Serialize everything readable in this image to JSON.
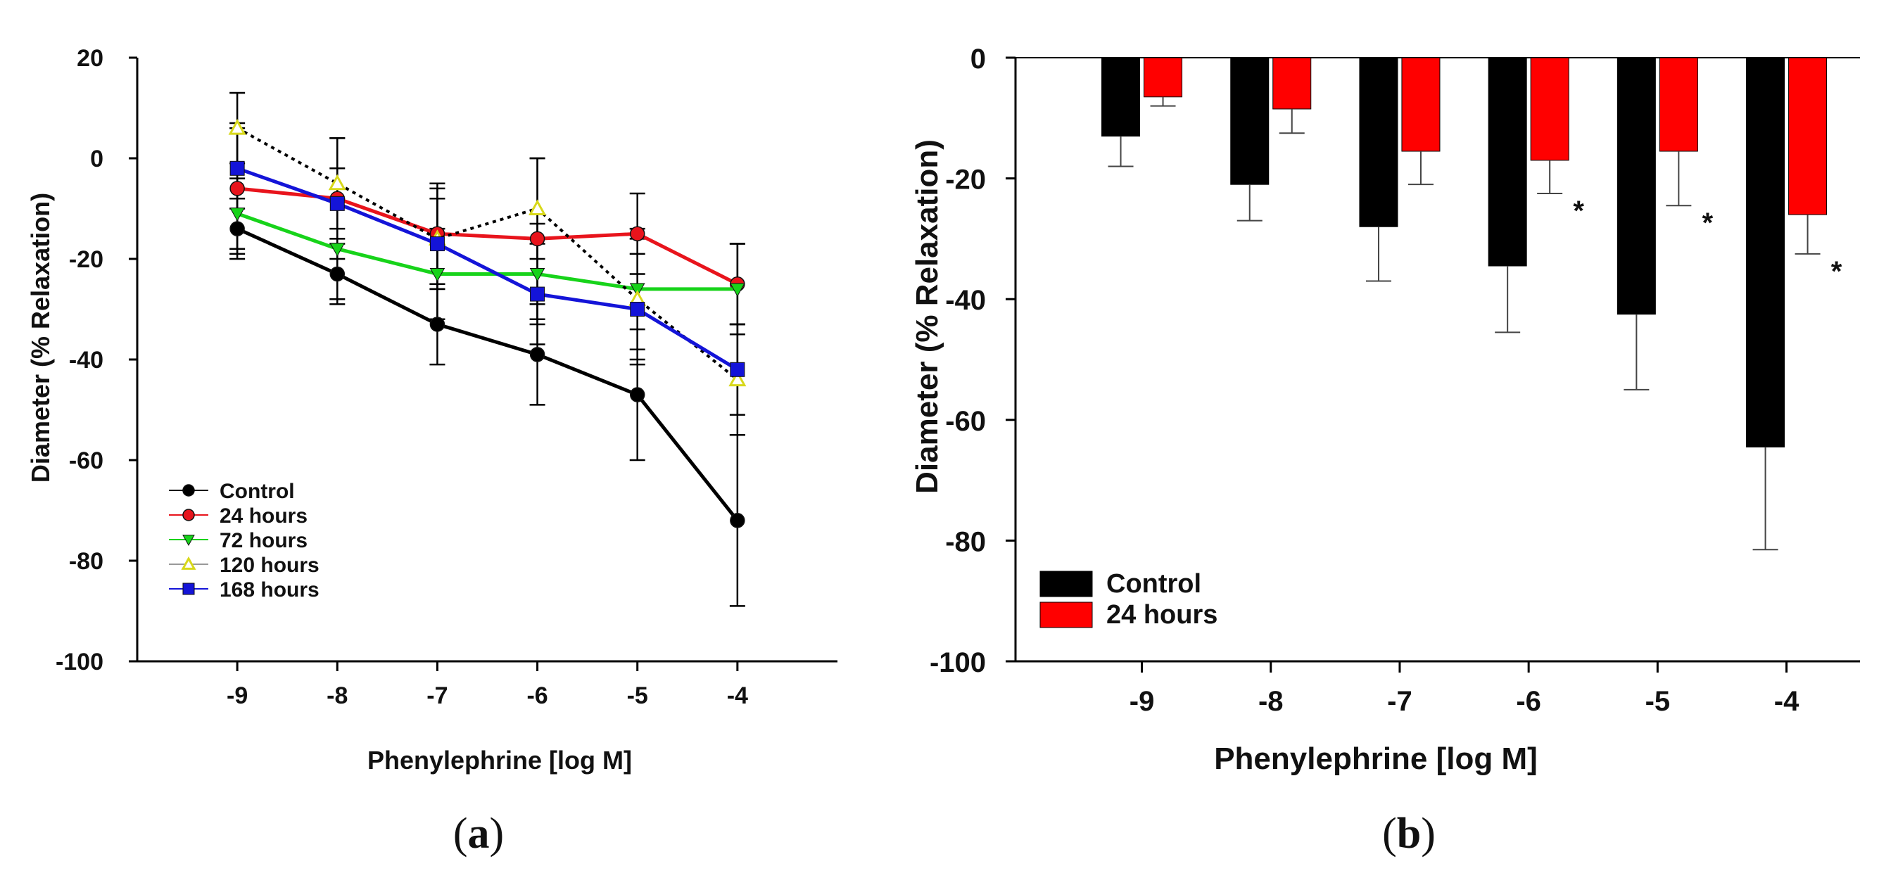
{
  "chart_data": [
    {
      "type": "line",
      "panel_label": "a",
      "xlabel": "Phenylephrine [log M]",
      "ylabel": "Diameter (% Relaxation)",
      "x": [
        -9,
        -8,
        -7,
        -6,
        -5,
        -4
      ],
      "x_tick_labels": [
        "-9",
        "-8",
        "-7",
        "-6",
        "-5",
        "-4"
      ],
      "xlim": [
        -10,
        -3
      ],
      "ylim": [
        -100,
        20
      ],
      "y_ticks": [
        20,
        0,
        -20,
        -40,
        -60,
        -80,
        -100
      ],
      "y_tick_labels": [
        "20",
        "0",
        "-20",
        "-40",
        "-60",
        "-80",
        "-100"
      ],
      "grid": false,
      "legend_position": "bottom-left",
      "series": [
        {
          "name": "Control",
          "color": "#000000",
          "marker": "circle",
          "line": "solid",
          "values": [
            -14,
            -23,
            -33,
            -39,
            -47,
            -72
          ],
          "error": [
            6,
            6,
            8,
            10,
            13,
            17
          ]
        },
        {
          "name": "24 hours",
          "color": "#e8141c",
          "marker": "circle",
          "line": "solid",
          "values": [
            -6,
            -8,
            -15,
            -16,
            -15,
            -25
          ],
          "error": [
            13,
            12,
            10,
            16,
            8,
            8
          ]
        },
        {
          "name": "72 hours",
          "color": "#17d31a",
          "marker": "triangle-down",
          "line": "solid",
          "values": [
            -11,
            -18,
            -23,
            -23,
            -26,
            -26
          ],
          "error": [
            7,
            10,
            9,
            10,
            12,
            9
          ]
        },
        {
          "name": "120 hours",
          "color": "#d8d81a",
          "marker": "triangle-up",
          "line": "dotted",
          "values": [
            6,
            -5,
            -16,
            -10,
            -28,
            -44
          ],
          "error": [
            7,
            9,
            10,
            10,
            12,
            11
          ]
        },
        {
          "name": "168 hours",
          "color": "#1414d8",
          "marker": "square",
          "line": "solid",
          "values": [
            -2,
            -9,
            -17,
            -27,
            -30,
            -42
          ],
          "error": [
            8,
            7,
            9,
            10,
            11,
            9
          ]
        }
      ]
    },
    {
      "type": "bar",
      "panel_label": "b",
      "xlabel": "Phenylephrine [log M]",
      "ylabel": "Diameter (% Relaxation)",
      "categories": [
        "-9",
        "-8",
        "-7",
        "-6",
        "-5",
        "-4"
      ],
      "ylim": [
        -100,
        0
      ],
      "y_ticks": [
        0,
        -20,
        -40,
        -60,
        -80,
        -100
      ],
      "y_tick_labels": [
        "0",
        "-20",
        "-40",
        "-60",
        "-80",
        "-100"
      ],
      "grid": false,
      "legend_position": "bottom-left",
      "series": [
        {
          "name": "Control",
          "color": "#000000",
          "values": [
            -13,
            -21,
            -28,
            -34.5,
            -42.5,
            -64.5
          ],
          "error": [
            5,
            6,
            9,
            11,
            12.5,
            17
          ]
        },
        {
          "name": "24 hours",
          "color": "#ff0000",
          "values": [
            -6.5,
            -8.5,
            -15.5,
            -17,
            -15.5,
            -26
          ],
          "error": [
            1.5,
            4,
            5.5,
            5.5,
            9,
            6.5
          ]
        }
      ],
      "significance_marker": "*",
      "significant": [
        false,
        false,
        false,
        true,
        true,
        true
      ]
    }
  ]
}
